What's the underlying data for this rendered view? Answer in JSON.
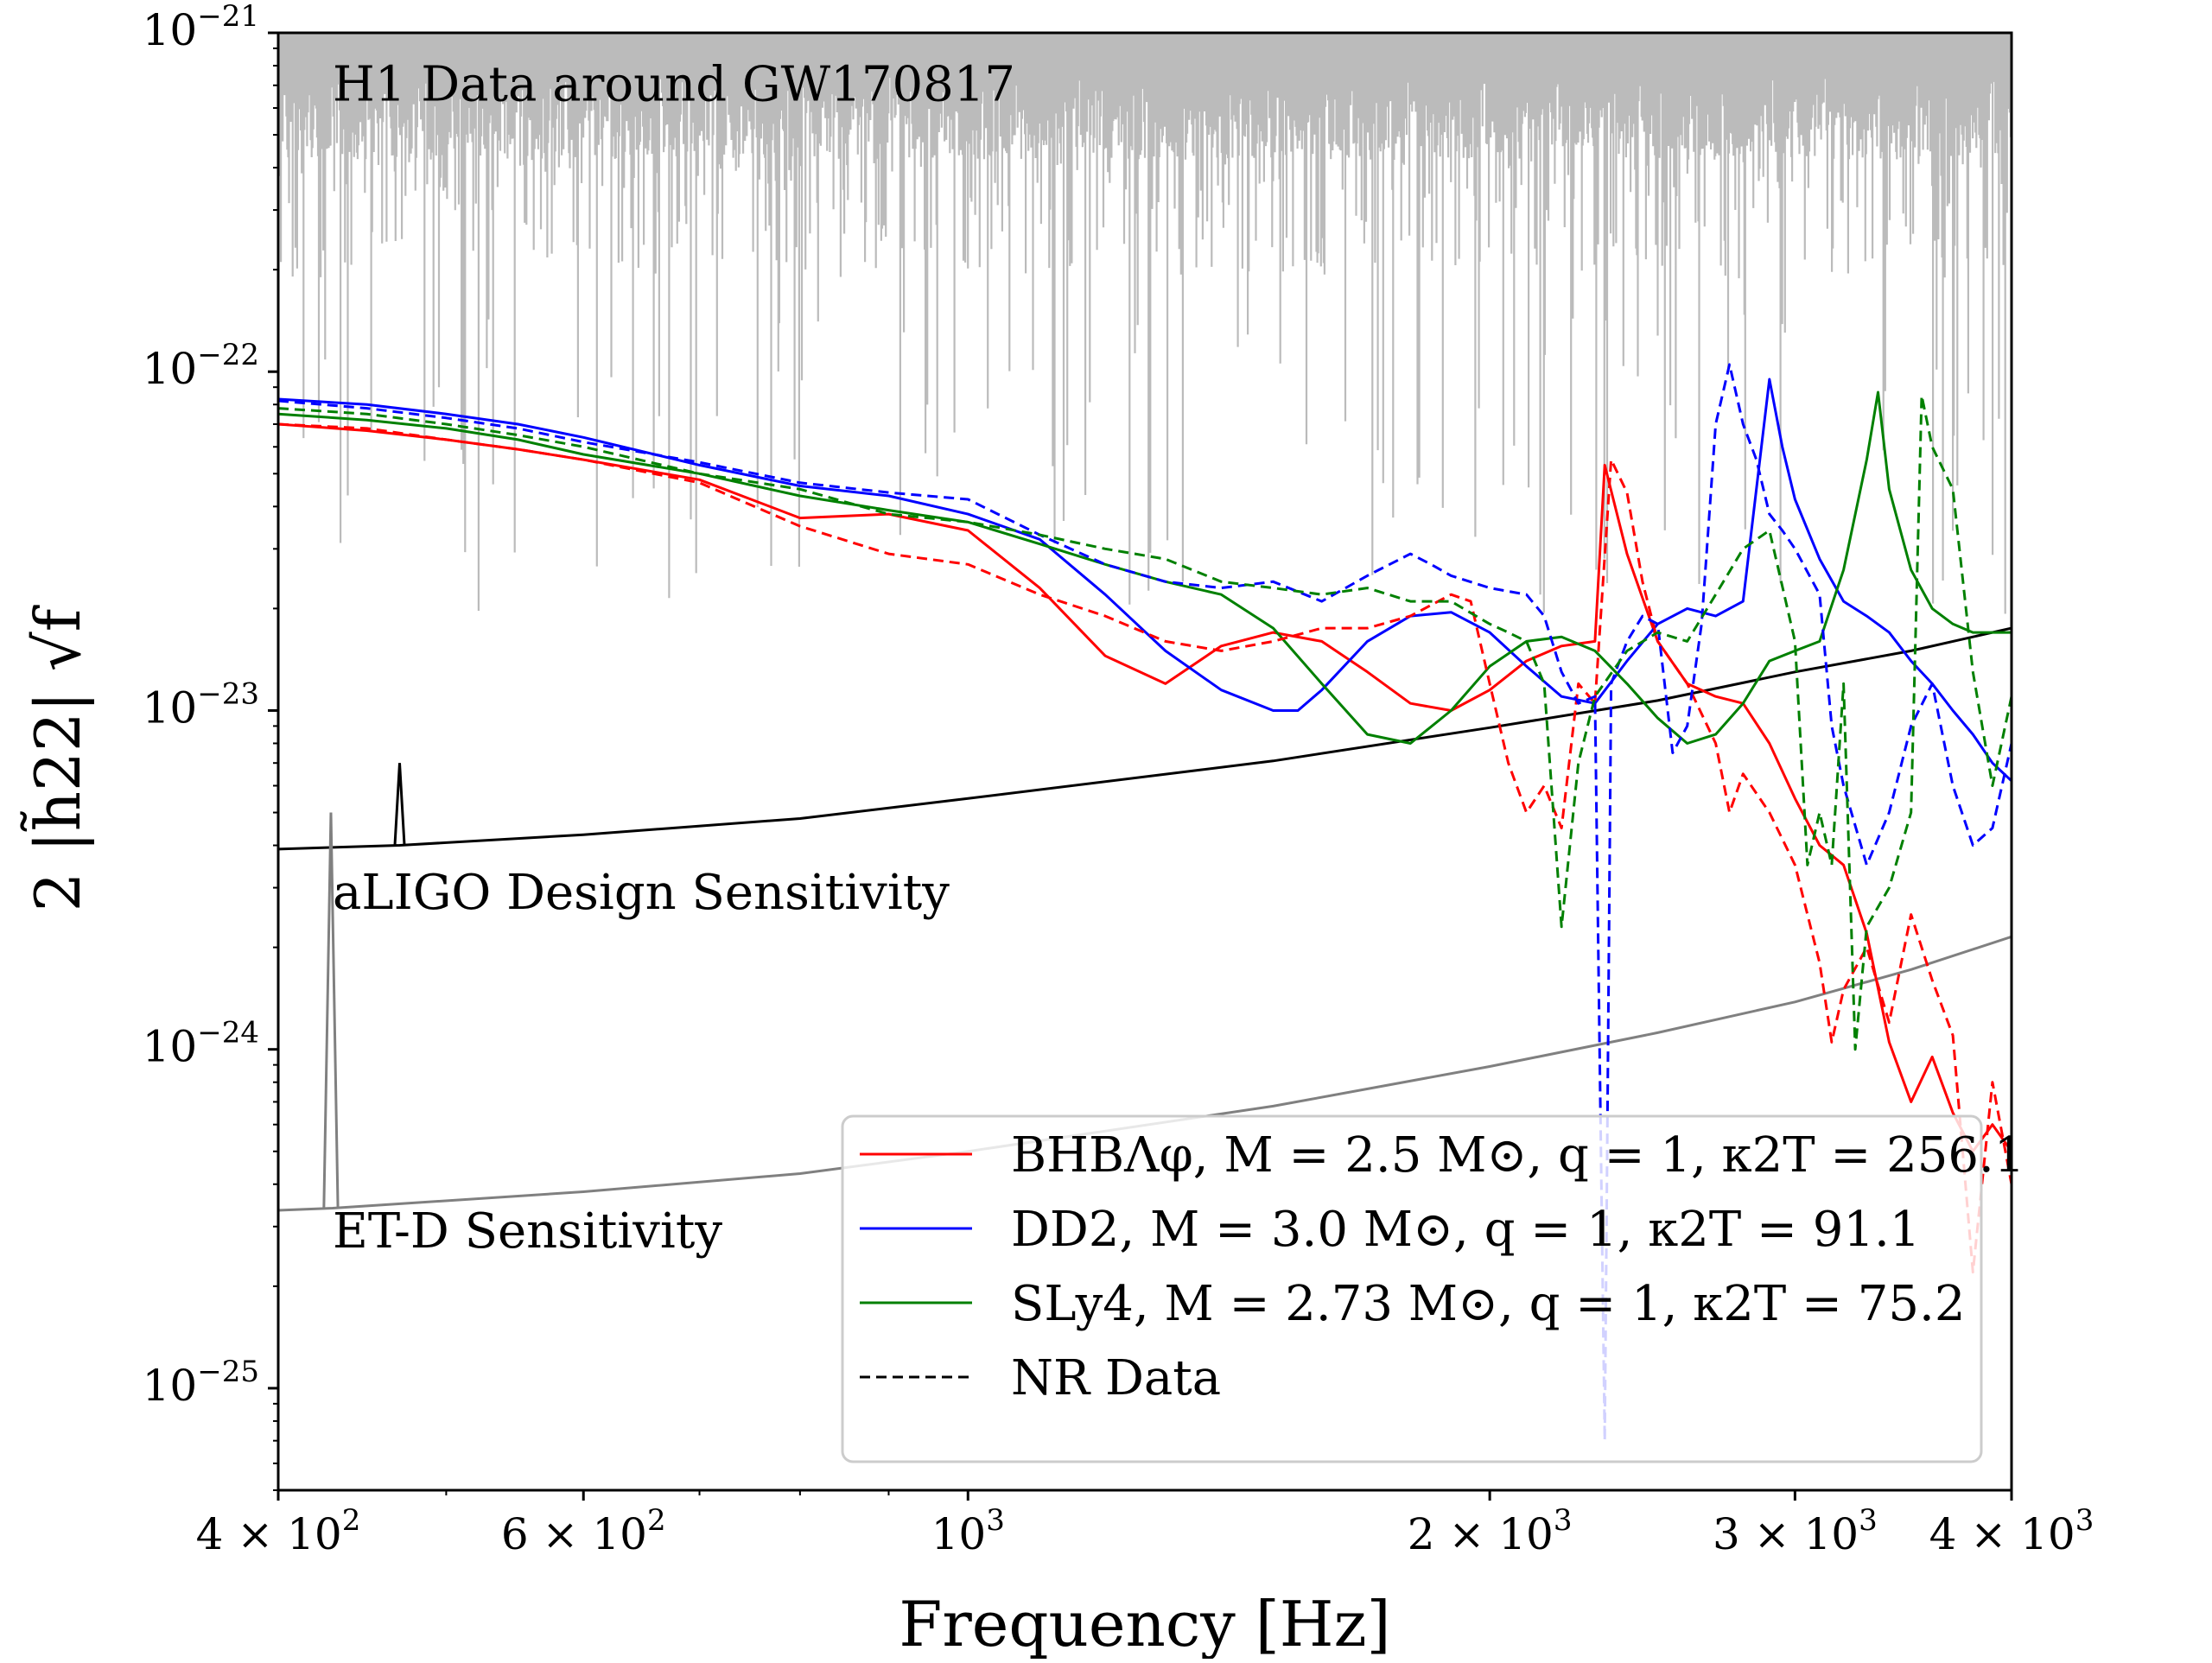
{
  "chart_data": {
    "type": "line",
    "xscale": "log",
    "yscale": "log",
    "xlim": [
      400,
      4000
    ],
    "ylim": [
      5e-26,
      1e-21
    ],
    "xlabel": "Frequency [Hz]",
    "ylabel": "2 |h̃22| √f",
    "xticks": [
      {
        "value": 400,
        "mant": "4 × 10",
        "exp": "2"
      },
      {
        "value": 600,
        "mant": "6 × 10",
        "exp": "2"
      },
      {
        "value": 1000,
        "mant": "10",
        "exp": "3"
      },
      {
        "value": 2000,
        "mant": "2 × 10",
        "exp": "3"
      },
      {
        "value": 3000,
        "mant": "3 × 10",
        "exp": "3"
      },
      {
        "value": 4000,
        "mant": "4 × 10",
        "exp": "3"
      }
    ],
    "yticks": [
      {
        "value": 1e-21,
        "mant": "10",
        "exp": "−21"
      },
      {
        "value": 1e-22,
        "mant": "10",
        "exp": "−22"
      },
      {
        "value": 1e-23,
        "mant": "10",
        "exp": "−23"
      },
      {
        "value": 1e-24,
        "mant": "10",
        "exp": "−24"
      },
      {
        "value": 1e-25,
        "mant": "10",
        "exp": "−25"
      }
    ],
    "annotations": [
      {
        "text": "H1 Data around GW170817",
        "x": 430,
        "y": 6.3e-22
      },
      {
        "text": "aLIGO Design Sensitivity",
        "x": 430,
        "y": 2.6e-24
      },
      {
        "text": "ET-D Sensitivity",
        "x": 430,
        "y": 2.6e-25
      }
    ],
    "legend": [
      {
        "label": "BHBΛφ, M = 2.5 M⊙, q = 1, κ2T = 256.1",
        "color": "#ff0000",
        "dash": "solid"
      },
      {
        "label": "DD2, M = 3.0 M⊙, q = 1, κ2T = 91.1",
        "color": "#0000ff",
        "dash": "solid"
      },
      {
        "label": "SLy4, M = 2.73 M⊙, q = 1, κ2T = 75.2",
        "color": "#008000",
        "dash": "solid"
      },
      {
        "label": "NR Data",
        "color": "#000000",
        "dash": "dashed"
      }
    ],
    "series": [
      {
        "name": "H1 Data (noise floor)",
        "color": "#bbbbbb",
        "x": [
          400,
          500,
          700,
          1000,
          1500,
          2000,
          3000,
          4000
        ],
        "y": [
          8e-22,
          7e-22,
          6.5e-22,
          6.5e-22,
          6.8e-22,
          7e-22,
          7e-22,
          7e-22
        ]
      },
      {
        "name": "aLIGO Design Sensitivity",
        "color": "#000000",
        "x": [
          400,
          470,
          600,
          800,
          1000,
          1500,
          2000,
          2500,
          3000,
          3500,
          4000
        ],
        "y": [
          3.9e-24,
          4e-24,
          4.3e-24,
          4.8e-24,
          5.5e-24,
          7.1e-24,
          8.9e-24,
          1.07e-23,
          1.3e-23,
          1.5e-23,
          1.75e-23
        ]
      },
      {
        "name": "ET-D Sensitivity",
        "color": "#808080",
        "x": [
          400,
          430,
          600,
          800,
          1000,
          1500,
          2000,
          2500,
          3000,
          3500,
          4000
        ],
        "y": [
          3.35e-25,
          3.4e-25,
          3.8e-25,
          4.3e-25,
          5e-25,
          6.8e-25,
          8.9e-25,
          1.12e-24,
          1.38e-24,
          1.72e-24,
          2.15e-24
        ]
      },
      {
        "name": "BHBΛφ fit",
        "color": "#ff0000",
        "dash": "solid",
        "x": [
          400,
          450,
          500,
          550,
          600,
          700,
          800,
          900,
          1000,
          1100,
          1200,
          1300,
          1400,
          1500,
          1600,
          1700,
          1800,
          1900,
          2000,
          2100,
          2200,
          2300,
          2330,
          2400,
          2500,
          2600,
          2700,
          2800,
          2900,
          3000,
          3100,
          3200,
          3300,
          3400,
          3500,
          3600,
          3700,
          3800,
          3900,
          4000
        ],
        "y": [
          7e-23,
          6.7e-23,
          6.3e-23,
          5.9e-23,
          5.5e-23,
          4.8e-23,
          3.7e-23,
          3.8e-23,
          3.4e-23,
          2.3e-23,
          1.45e-23,
          1.2e-23,
          1.55e-23,
          1.7e-23,
          1.6e-23,
          1.3e-23,
          1.05e-23,
          1e-23,
          1.15e-23,
          1.4e-23,
          1.55e-23,
          1.6e-23,
          5.3e-23,
          2.9e-23,
          1.6e-23,
          1.2e-23,
          1.1e-23,
          1.05e-23,
          8e-24,
          5.5e-24,
          4e-24,
          3.5e-24,
          2.2e-24,
          1.05e-24,
          7e-25,
          9.5e-25,
          6.5e-25,
          5e-25,
          6e-25,
          5e-25
        ]
      },
      {
        "name": "DD2 fit",
        "color": "#0000ff",
        "dash": "solid",
        "x": [
          400,
          450,
          500,
          550,
          600,
          700,
          800,
          900,
          1000,
          1100,
          1200,
          1300,
          1400,
          1500,
          1550,
          1600,
          1700,
          1800,
          1900,
          2000,
          2100,
          2200,
          2300,
          2400,
          2500,
          2600,
          2700,
          2800,
          2900,
          2950,
          3000,
          3100,
          3200,
          3300,
          3400,
          3500,
          3600,
          3700,
          3800,
          3900,
          4000
        ],
        "y": [
          8.3e-23,
          8e-23,
          7.5e-23,
          7e-23,
          6.4e-23,
          5.3e-23,
          4.6e-23,
          4.3e-23,
          3.8e-23,
          3.2e-23,
          2.2e-23,
          1.5e-23,
          1.15e-23,
          1e-23,
          1e-23,
          1.15e-23,
          1.6e-23,
          1.9e-23,
          1.95e-23,
          1.7e-23,
          1.35e-23,
          1.1e-23,
          1.05e-23,
          1.4e-23,
          1.8e-23,
          2e-23,
          1.9e-23,
          2.1e-23,
          9.5e-23,
          6e-23,
          4.2e-23,
          2.8e-23,
          2.1e-23,
          1.9e-23,
          1.7e-23,
          1.4e-23,
          1.2e-23,
          1e-23,
          8.5e-24,
          7e-24,
          6.2e-24
        ]
      },
      {
        "name": "SLy4 fit",
        "color": "#008000",
        "dash": "solid",
        "x": [
          400,
          450,
          500,
          550,
          600,
          700,
          800,
          900,
          1000,
          1100,
          1200,
          1300,
          1400,
          1500,
          1600,
          1700,
          1800,
          1900,
          2000,
          2100,
          2200,
          2300,
          2400,
          2500,
          2600,
          2700,
          2800,
          2900,
          3000,
          3100,
          3200,
          3300,
          3350,
          3400,
          3500,
          3600,
          3700,
          3800,
          3900,
          4000
        ],
        "y": [
          7.5e-23,
          7.2e-23,
          6.8e-23,
          6.3e-23,
          5.7e-23,
          5e-23,
          4.3e-23,
          3.9e-23,
          3.6e-23,
          3.1e-23,
          2.7e-23,
          2.4e-23,
          2.2e-23,
          1.75e-23,
          1.2e-23,
          8.5e-24,
          8e-24,
          1e-23,
          1.35e-23,
          1.6e-23,
          1.65e-23,
          1.5e-23,
          1.2e-23,
          9.5e-24,
          8e-24,
          8.5e-24,
          1.05e-23,
          1.4e-23,
          1.5e-23,
          1.6e-23,
          2.6e-23,
          5.5e-23,
          8.7e-23,
          4.5e-23,
          2.6e-23,
          2e-23,
          1.8e-23,
          1.7e-23,
          1.7e-23,
          1.7e-23
        ]
      },
      {
        "name": "BHBΛφ NR",
        "color": "#ff0000",
        "dash": "dashed",
        "x": [
          400,
          450,
          500,
          550,
          600,
          700,
          800,
          900,
          1000,
          1100,
          1200,
          1300,
          1400,
          1500,
          1600,
          1700,
          1800,
          1900,
          1950,
          2000,
          2050,
          2100,
          2150,
          2200,
          2250,
          2300,
          2350,
          2400,
          2450,
          2500,
          2600,
          2700,
          2750,
          2800,
          2900,
          3000,
          3100,
          3150,
          3200,
          3300,
          3400,
          3500,
          3600,
          3700,
          3800,
          3900,
          4000
        ],
        "y": [
          7e-23,
          6.8e-23,
          6.3e-23,
          5.9e-23,
          5.5e-23,
          4.7e-23,
          3.5e-23,
          2.9e-23,
          2.7e-23,
          2.2e-23,
          1.9e-23,
          1.6e-23,
          1.5e-23,
          1.6e-23,
          1.75e-23,
          1.75e-23,
          1.9e-23,
          2.2e-23,
          2.1e-23,
          1.2e-23,
          7e-24,
          5e-24,
          6e-24,
          4.5e-24,
          1.2e-23,
          1.05e-23,
          5.5e-23,
          4.4e-23,
          2.4e-23,
          1.6e-23,
          1.2e-23,
          8e-24,
          5e-24,
          6.5e-24,
          5e-24,
          3.5e-24,
          1.8e-24,
          1.05e-24,
          1.5e-24,
          2e-24,
          1.2e-24,
          2.5e-24,
          1.6e-24,
          1.1e-24,
          2.2e-25,
          8e-25,
          4e-25
        ]
      },
      {
        "name": "DD2 NR",
        "color": "#0000ff",
        "dash": "dashed",
        "x": [
          400,
          450,
          500,
          550,
          600,
          700,
          800,
          900,
          1000,
          1100,
          1200,
          1300,
          1400,
          1500,
          1600,
          1700,
          1800,
          1850,
          1900,
          2000,
          2100,
          2150,
          2200,
          2250,
          2300,
          2330,
          2350,
          2400,
          2450,
          2500,
          2550,
          2600,
          2650,
          2700,
          2750,
          2800,
          2850,
          2900,
          2950,
          3000,
          3100,
          3150,
          3200,
          3300,
          3400,
          3500,
          3600,
          3700,
          3800,
          3900,
          4000
        ],
        "y": [
          8.2e-23,
          7.8e-23,
          7.3e-23,
          6.8e-23,
          6.2e-23,
          5.4e-23,
          4.7e-23,
          4.4e-23,
          4.2e-23,
          3.3e-23,
          2.7e-23,
          2.4e-23,
          2.3e-23,
          2.4e-23,
          2.1e-23,
          2.5e-23,
          2.9e-23,
          2.7e-23,
          2.5e-23,
          2.3e-23,
          2.2e-23,
          1.9e-23,
          1.3e-23,
          1.05e-23,
          1.1e-23,
          7e-26,
          1.2e-23,
          1.6e-23,
          1.9e-23,
          1.8e-23,
          7.5e-24,
          9e-24,
          1.8e-23,
          7e-23,
          1.05e-22,
          7e-23,
          5.5e-23,
          3.8e-23,
          3.4e-23,
          3e-23,
          2.2e-23,
          9e-24,
          6e-24,
          3.5e-24,
          5e-24,
          9e-24,
          1.2e-23,
          6e-24,
          4e-24,
          4.5e-24,
          8e-24
        ]
      },
      {
        "name": "SLy4 NR",
        "color": "#008000",
        "dash": "dashed",
        "x": [
          400,
          450,
          500,
          550,
          600,
          700,
          800,
          900,
          1000,
          1100,
          1200,
          1300,
          1400,
          1500,
          1600,
          1700,
          1800,
          1900,
          2000,
          2050,
          2100,
          2150,
          2200,
          2250,
          2300,
          2400,
          2500,
          2600,
          2700,
          2800,
          2900,
          3000,
          3050,
          3100,
          3150,
          3200,
          3250,
          3300,
          3400,
          3500,
          3550,
          3600,
          3700,
          3800,
          3900,
          4000
        ],
        "y": [
          7.8e-23,
          7.5e-23,
          7e-23,
          6.5e-23,
          6e-23,
          5e-23,
          4.5e-23,
          3.8e-23,
          3.6e-23,
          3.3e-23,
          3e-23,
          2.8e-23,
          2.4e-23,
          2.3e-23,
          2.2e-23,
          2.3e-23,
          2.1e-23,
          2.1e-23,
          1.8e-23,
          1.7e-23,
          1.6e-23,
          1.2e-23,
          2.3e-24,
          7e-24,
          1.1e-23,
          1.5e-23,
          1.7e-23,
          1.6e-23,
          2.2e-23,
          3e-23,
          3.4e-23,
          1.6e-23,
          3.5e-24,
          5e-24,
          3.5e-24,
          1.2e-23,
          1e-24,
          2.3e-24,
          3e-24,
          5e-24,
          8.5e-23,
          6e-23,
          4.5e-23,
          1.3e-23,
          6e-24,
          1.1e-23
        ]
      }
    ]
  }
}
